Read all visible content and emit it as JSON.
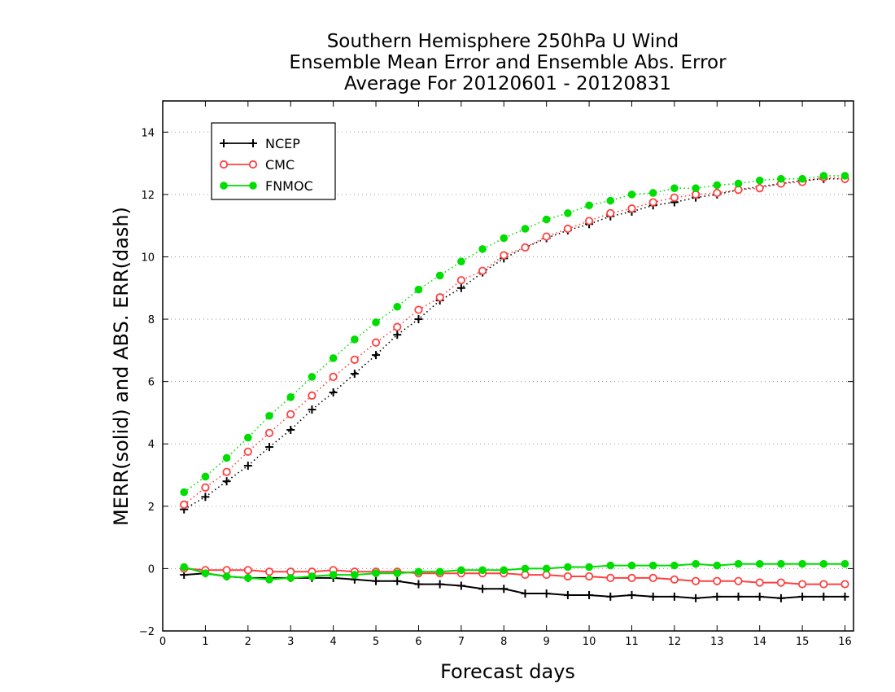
{
  "chart_data": {
    "type": "line",
    "title_lines": [
      "Southern Hemisphere 250hPa U Wind",
      "Ensemble Mean Error and Ensemble Abs. Error",
      "Average For 20120601 - 20120831"
    ],
    "xlabel": "Forecast days",
    "ylabel": "MERR(solid) and ABS. ERR(dash)",
    "xlim": [
      0,
      16.2
    ],
    "ylim": [
      -2,
      15
    ],
    "xticks": [
      0,
      1,
      2,
      3,
      4,
      5,
      6,
      7,
      8,
      9,
      10,
      11,
      12,
      13,
      14,
      15,
      16
    ],
    "yticks": [
      -2,
      0,
      2,
      4,
      6,
      8,
      10,
      12,
      14
    ],
    "ytick_labels": [
      "−2",
      "0",
      "2",
      "4",
      "6",
      "8",
      "10",
      "12",
      "14"
    ],
    "grid": {
      "horizontal": true,
      "style": "dotted"
    },
    "legend_position": "top-left",
    "x": [
      0.5,
      1,
      1.5,
      2,
      2.5,
      3,
      3.5,
      4,
      4.5,
      5,
      5.5,
      6,
      6.5,
      7,
      7.5,
      8,
      8.5,
      9,
      9.5,
      10,
      10.5,
      11,
      11.5,
      12,
      12.5,
      13,
      13.5,
      14,
      14.5,
      15,
      15.5,
      16
    ],
    "series": [
      {
        "name": "NCEP",
        "color": "#000000",
        "marker": "plus",
        "abs_err": [
          1.9,
          2.3,
          2.8,
          3.3,
          3.9,
          4.45,
          5.1,
          5.65,
          6.25,
          6.85,
          7.5,
          8.0,
          8.6,
          9.0,
          9.5,
          9.95,
          10.3,
          10.6,
          10.85,
          11.05,
          11.3,
          11.45,
          11.65,
          11.75,
          11.9,
          12.0,
          12.15,
          12.25,
          12.35,
          12.45,
          12.5,
          12.5
        ],
        "mean_err": [
          -0.2,
          -0.15,
          -0.25,
          -0.3,
          -0.3,
          -0.3,
          -0.3,
          -0.3,
          -0.35,
          -0.4,
          -0.4,
          -0.5,
          -0.5,
          -0.55,
          -0.65,
          -0.65,
          -0.8,
          -0.8,
          -0.85,
          -0.85,
          -0.9,
          -0.85,
          -0.9,
          -0.9,
          -0.95,
          -0.9,
          -0.9,
          -0.9,
          -0.95,
          -0.9,
          -0.9,
          -0.9
        ]
      },
      {
        "name": "CMC",
        "color": "#ff4040",
        "marker": "open-circle",
        "abs_err": [
          2.05,
          2.6,
          3.1,
          3.75,
          4.35,
          4.95,
          5.55,
          6.15,
          6.7,
          7.25,
          7.75,
          8.3,
          8.7,
          9.25,
          9.55,
          10.05,
          10.3,
          10.65,
          10.9,
          11.15,
          11.4,
          11.55,
          11.75,
          11.9,
          12.0,
          12.05,
          12.15,
          12.2,
          12.35,
          12.4,
          12.55,
          12.5
        ],
        "mean_err": [
          0.0,
          -0.05,
          -0.05,
          -0.05,
          -0.1,
          -0.1,
          -0.1,
          -0.05,
          -0.1,
          -0.1,
          -0.1,
          -0.15,
          -0.15,
          -0.15,
          -0.15,
          -0.15,
          -0.2,
          -0.2,
          -0.25,
          -0.25,
          -0.3,
          -0.3,
          -0.3,
          -0.35,
          -0.4,
          -0.4,
          -0.4,
          -0.45,
          -0.45,
          -0.5,
          -0.5,
          -0.5
        ]
      },
      {
        "name": "FNMOC",
        "color": "#00dd00",
        "marker": "filled-circle",
        "abs_err": [
          2.45,
          2.95,
          3.55,
          4.2,
          4.9,
          5.5,
          6.15,
          6.75,
          7.35,
          7.9,
          8.4,
          8.95,
          9.4,
          9.85,
          10.25,
          10.6,
          10.9,
          11.2,
          11.4,
          11.65,
          11.8,
          12.0,
          12.05,
          12.2,
          12.2,
          12.3,
          12.35,
          12.45,
          12.5,
          12.5,
          12.6,
          12.6
        ],
        "mean_err": [
          0.05,
          -0.15,
          -0.25,
          -0.3,
          -0.35,
          -0.3,
          -0.25,
          -0.2,
          -0.2,
          -0.15,
          -0.15,
          -0.1,
          -0.1,
          -0.05,
          -0.05,
          -0.05,
          0.0,
          0.0,
          0.05,
          0.05,
          0.1,
          0.1,
          0.1,
          0.1,
          0.15,
          0.1,
          0.15,
          0.15,
          0.15,
          0.15,
          0.15,
          0.15
        ]
      }
    ]
  }
}
